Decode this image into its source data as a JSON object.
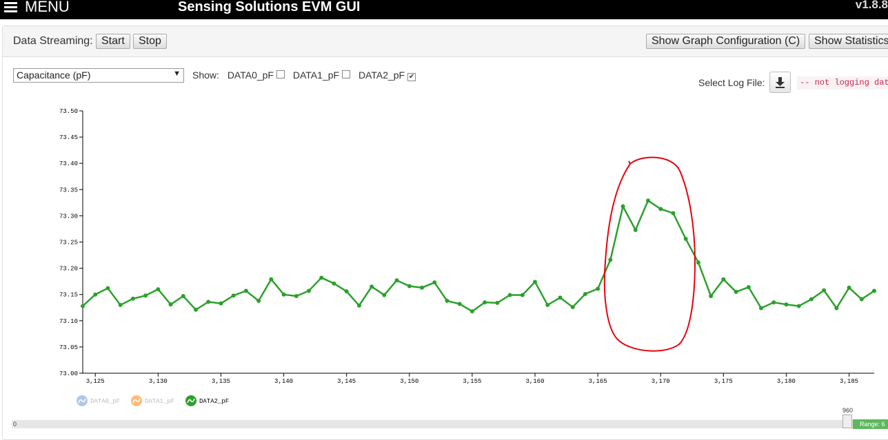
{
  "topbar": {
    "menu_label": "MENU",
    "title": "Sensing Solutions EVM GUI",
    "version": "v1.8.8"
  },
  "toolbar": {
    "data_streaming_label": "Data Streaming:",
    "start_label": "Start",
    "stop_label": "Stop",
    "graph_config_label": "Show Graph Configuration (C)",
    "statistics_label": "Show Statistics"
  },
  "controls": {
    "measure_select": "Capacitance (pF)",
    "show_label": "Show:",
    "channels": [
      {
        "label": "DATA0_pF",
        "checked": false
      },
      {
        "label": "DATA1_pF",
        "checked": false
      },
      {
        "label": "DATA2_pF",
        "checked": true
      }
    ],
    "log_label": "Select Log File:",
    "log_status": "-- not logging data --"
  },
  "colors": {
    "series": "#2ca02c",
    "annotation": "#e8000a",
    "legend_dim0": "#aec7e8",
    "legend_dim1": "#ffbb78"
  },
  "chart_data": {
    "type": "line",
    "x": [
      3124,
      3125,
      3126,
      3127,
      3128,
      3129,
      3130,
      3131,
      3132,
      3133,
      3134,
      3135,
      3136,
      3137,
      3138,
      3139,
      3140,
      3141,
      3142,
      3143,
      3144,
      3145,
      3146,
      3147,
      3148,
      3149,
      3150,
      3151,
      3152,
      3153,
      3154,
      3155,
      3156,
      3157,
      3158,
      3159,
      3160,
      3161,
      3162,
      3163,
      3164,
      3165,
      3166,
      3167,
      3168,
      3169,
      3170,
      3171,
      3172,
      3173,
      3174,
      3175,
      3176,
      3177,
      3178,
      3179,
      3180,
      3181,
      3182,
      3183,
      3184,
      3185,
      3186,
      3187
    ],
    "series": [
      {
        "name": "DATA2_pF",
        "values": [
          73.128,
          73.15,
          73.162,
          73.13,
          73.142,
          73.148,
          73.16,
          73.131,
          73.147,
          73.121,
          73.136,
          73.133,
          73.148,
          73.157,
          73.138,
          73.179,
          73.15,
          73.147,
          73.157,
          73.182,
          73.171,
          73.156,
          73.129,
          73.165,
          73.149,
          73.177,
          73.166,
          73.163,
          73.173,
          73.138,
          73.132,
          73.118,
          73.135,
          73.134,
          73.149,
          73.149,
          73.174,
          73.13,
          73.144,
          73.126,
          73.151,
          73.161,
          73.216,
          73.318,
          73.273,
          73.329,
          73.313,
          73.305,
          73.256,
          73.211,
          73.147,
          73.179,
          73.155,
          73.164,
          73.124,
          73.135,
          73.131,
          73.128,
          73.141,
          73.158,
          73.124,
          73.163,
          73.141,
          73.157
        ]
      }
    ],
    "y_ticks": [
      "73.00",
      "73.05",
      "73.10",
      "73.15",
      "73.20",
      "73.25",
      "73.30",
      "73.35",
      "73.40",
      "73.45",
      "73.50"
    ],
    "x_ticks": [
      "3,125",
      "3,130",
      "3,135",
      "3,140",
      "3,145",
      "3,150",
      "3,155",
      "3,160",
      "3,165",
      "3,170",
      "3,175",
      "3,180",
      "3,185"
    ],
    "ylim": [
      73.0,
      73.5
    ],
    "xlim": [
      3124,
      3187
    ],
    "legend": [
      "DATA0_pF",
      "DATA1_pF",
      "DATA2_pF"
    ],
    "legend_placement": "bottom-left"
  },
  "slider": {
    "left_value": "0",
    "handle_value": "960",
    "range_label": "Range: 6"
  }
}
